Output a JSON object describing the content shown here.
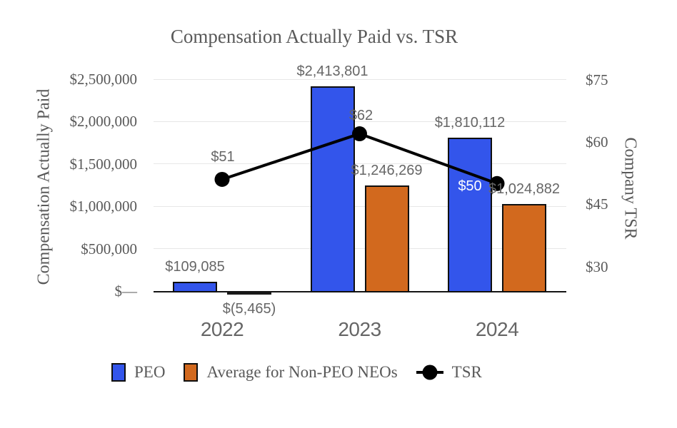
{
  "chart_data": {
    "type": "combo",
    "title": "Compensation Actually Paid vs. TSR",
    "categories": [
      "2022",
      "2023",
      "2024"
    ],
    "series": [
      {
        "name": "PEO",
        "type": "bar",
        "color": "#3355EB",
        "axis": "left",
        "values": [
          109085,
          2413801,
          1810112
        ],
        "labels": [
          "$109,085",
          "$2,413,801",
          "$1,810,112"
        ]
      },
      {
        "name": "Average for Non-PEO NEOs",
        "type": "bar",
        "color": "#D2691E",
        "axis": "left",
        "values": [
          -5465,
          1246269,
          1024882
        ],
        "labels": [
          "$(5,465)",
          "$1,246,269",
          "$1,024,882"
        ]
      },
      {
        "name": "TSR",
        "type": "line",
        "color": "#000000",
        "axis": "right",
        "values": [
          51,
          62,
          50
        ],
        "labels": [
          "$51",
          "$62",
          "$50"
        ],
        "label_colors": [
          "#666666",
          "#666666",
          "#FFFFFF"
        ]
      }
    ],
    "left_axis": {
      "title": "Compensation Actually Paid",
      "min": 0,
      "max": 2500000,
      "ticks": [
        {
          "label": "$—",
          "value": 0
        },
        {
          "label": "$500,000",
          "value": 500000
        },
        {
          "label": "$1,000,000",
          "value": 1000000
        },
        {
          "label": "$1,500,000",
          "value": 1500000
        },
        {
          "label": "$2,000,000",
          "value": 2000000
        },
        {
          "label": "$2,500,000",
          "value": 2500000
        }
      ]
    },
    "right_axis": {
      "title": "Company TSR",
      "min": 30,
      "max": 75,
      "ticks": [
        {
          "label": "$30",
          "value": 30
        },
        {
          "label": "$45",
          "value": 45
        },
        {
          "label": "$60",
          "value": 60
        },
        {
          "label": "$75",
          "value": 75
        }
      ]
    },
    "grid": "horizontal",
    "legend_position": "bottom",
    "colors": {
      "background": "#FFFFFF",
      "gridline": "#E7E7E7",
      "axis_line": "#141414",
      "serif_text": "#595959",
      "data_label_text": "#666666",
      "bar_border": "#0F0F0F"
    }
  }
}
